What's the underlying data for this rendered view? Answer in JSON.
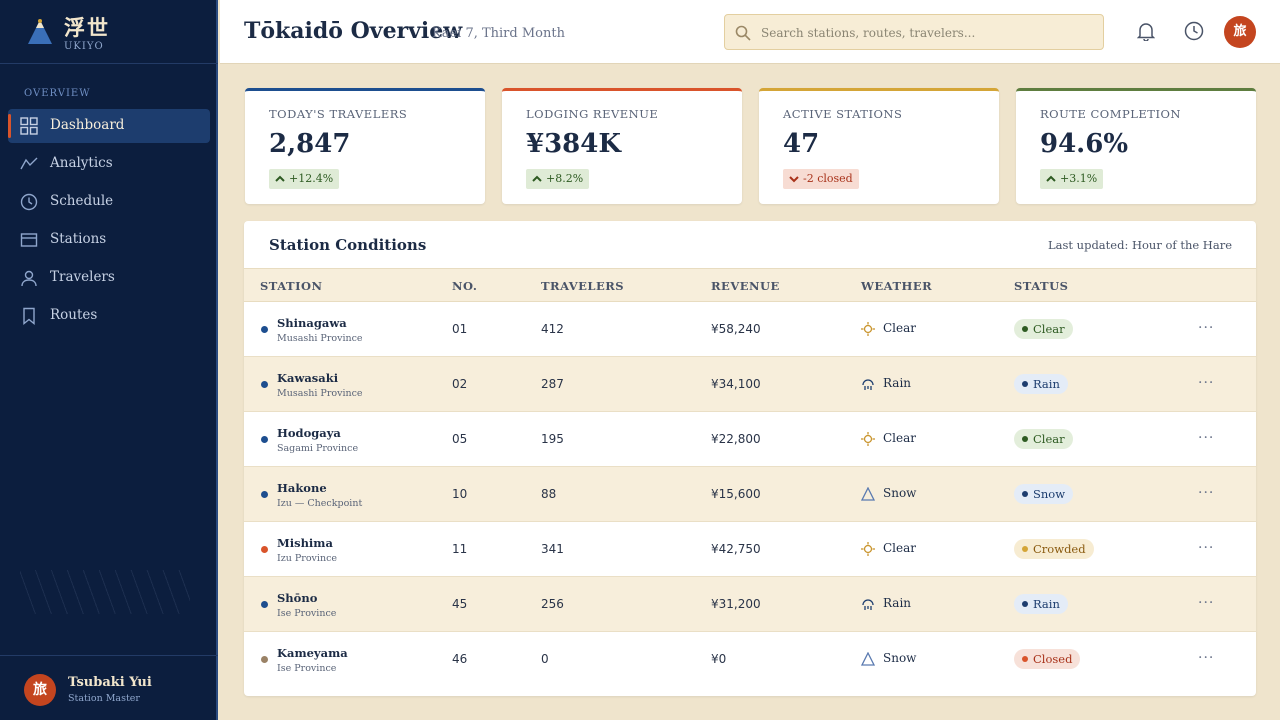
{
  "brand": {
    "title": "浮世",
    "subtitle": "UKIYO"
  },
  "sidebar": {
    "section_label": "OVERVIEW",
    "items": [
      {
        "label": "Dashboard",
        "icon": "dashboard-icon",
        "active": true
      },
      {
        "label": "Analytics",
        "icon": "analytics-icon"
      },
      {
        "label": "Schedule",
        "icon": "clock-icon"
      },
      {
        "label": "Stations",
        "icon": "stations-icon"
      },
      {
        "label": "Travelers",
        "icon": "user-icon"
      },
      {
        "label": "Routes",
        "icon": "bookmark-icon"
      }
    ]
  },
  "user": {
    "initial": "旅",
    "name": "Tsubaki Yui",
    "role": "Station Master"
  },
  "header": {
    "title": "Tōkaidō Overview",
    "subtitle": "Kaei 7, Third Month",
    "search_placeholder": "Search stations, routes, travelers...",
    "avatar_initial": "旅"
  },
  "stats": [
    {
      "label": "TODAY'S TRAVELERS",
      "value": "2,847",
      "change": "+12.4%",
      "trend": "up",
      "accent": "#1d4e8f"
    },
    {
      "label": "LODGING REVENUE",
      "value": "¥384K",
      "change": "+8.2%",
      "trend": "up",
      "accent": "#d9542b"
    },
    {
      "label": "ACTIVE STATIONS",
      "value": "47",
      "change": "-2 closed",
      "trend": "down",
      "accent": "#d4a537"
    },
    {
      "label": "ROUTE COMPLETION",
      "value": "94.6%",
      "change": "+3.1%",
      "trend": "up",
      "accent": "#5e7d3f"
    }
  ],
  "table": {
    "title": "Station Conditions",
    "last_updated": "Last updated: Hour of the Hare",
    "columns": [
      "STATION",
      "NO.",
      "TRAVELERS",
      "REVENUE",
      "WEATHER",
      "STATUS"
    ],
    "rows": [
      {
        "station": "Shinagawa",
        "province": "Musashi Province",
        "no": "01",
        "travelers": "412",
        "revenue": "¥58,240",
        "weather": "Clear",
        "status": "Clear",
        "dot": "#1d4e8f"
      },
      {
        "station": "Kawasaki",
        "province": "Musashi Province",
        "no": "02",
        "travelers": "287",
        "revenue": "¥34,100",
        "weather": "Rain",
        "status": "Rain",
        "dot": "#1d4e8f"
      },
      {
        "station": "Hodogaya",
        "province": "Sagami Province",
        "no": "05",
        "travelers": "195",
        "revenue": "¥22,800",
        "weather": "Clear",
        "status": "Clear",
        "dot": "#1d4e8f"
      },
      {
        "station": "Hakone",
        "province": "Izu — Checkpoint",
        "no": "10",
        "travelers": "88",
        "revenue": "¥15,600",
        "weather": "Snow",
        "status": "Snow",
        "dot": "#1d4e8f"
      },
      {
        "station": "Mishima",
        "province": "Izu Province",
        "no": "11",
        "travelers": "341",
        "revenue": "¥42,750",
        "weather": "Clear",
        "status": "Crowded",
        "dot": "#d9542b"
      },
      {
        "station": "Shōno",
        "province": "Ise Province",
        "no": "45",
        "travelers": "256",
        "revenue": "¥31,200",
        "weather": "Rain",
        "status": "Rain",
        "dot": "#1d4e8f"
      },
      {
        "station": "Kameyama",
        "province": "Ise Province",
        "no": "46",
        "travelers": "0",
        "revenue": "¥0",
        "weather": "Snow",
        "status": "Closed",
        "dot": "#9a8266"
      }
    ]
  }
}
